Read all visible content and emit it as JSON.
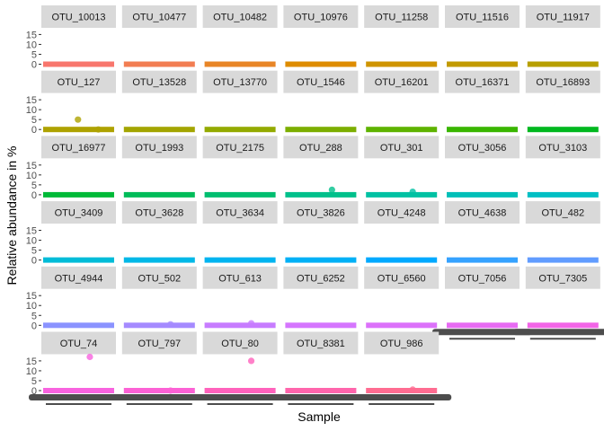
{
  "chart_data": {
    "type": "scatter",
    "xlabel": "Sample",
    "ylabel": "Relative abundance in %",
    "y_ticks": [
      0,
      5,
      10,
      15
    ],
    "ylim": [
      0,
      17
    ],
    "grid": false,
    "facet_layout": {
      "columns": 7
    },
    "facets": [
      {
        "name": "OTU_10013",
        "color": "#F8766D",
        "points": []
      },
      {
        "name": "OTU_10477",
        "color": "#F27D52",
        "points": []
      },
      {
        "name": "OTU_10482",
        "color": "#E88526",
        "points": []
      },
      {
        "name": "OTU_10976",
        "color": "#DE8C00",
        "points": []
      },
      {
        "name": "OTU_11258",
        "color": "#CF9400",
        "points": []
      },
      {
        "name": "OTU_11516",
        "color": "#C29A00",
        "points": []
      },
      {
        "name": "OTU_11917",
        "color": "#B79F00",
        "points": []
      },
      {
        "name": "OTU_127",
        "color": "#AEA200",
        "points": [
          5,
          0
        ]
      },
      {
        "name": "OTU_13528",
        "color": "#A3A500",
        "points": []
      },
      {
        "name": "OTU_13770",
        "color": "#93AA00",
        "points": []
      },
      {
        "name": "OTU_1546",
        "color": "#7CAE00",
        "points": []
      },
      {
        "name": "OTU_16201",
        "color": "#5EB300",
        "points": []
      },
      {
        "name": "OTU_16371",
        "color": "#39B600",
        "points": []
      },
      {
        "name": "OTU_16893",
        "color": "#00B81F",
        "points": []
      },
      {
        "name": "OTU_16977",
        "color": "#00BA38",
        "points": []
      },
      {
        "name": "OTU_1993",
        "color": "#00BC59",
        "points": []
      },
      {
        "name": "OTU_2175",
        "color": "#00BE70",
        "points": []
      },
      {
        "name": "OTU_288",
        "color": "#00C08B",
        "points": [
          2.5
        ]
      },
      {
        "name": "OTU_301",
        "color": "#00C1A3",
        "points": [
          1.5
        ]
      },
      {
        "name": "OTU_3056",
        "color": "#00BFB8",
        "points": []
      },
      {
        "name": "OTU_3103",
        "color": "#00BFC4",
        "points": []
      },
      {
        "name": "OTU_3409",
        "color": "#00BCD8",
        "points": []
      },
      {
        "name": "OTU_3628",
        "color": "#00B8E7",
        "points": []
      },
      {
        "name": "OTU_3634",
        "color": "#00B4F0",
        "points": []
      },
      {
        "name": "OTU_3826",
        "color": "#00B0F6",
        "points": []
      },
      {
        "name": "OTU_4248",
        "color": "#00A9FF",
        "points": []
      },
      {
        "name": "OTU_4638",
        "color": "#35A2FF",
        "points": []
      },
      {
        "name": "OTU_482",
        "color": "#619CFF",
        "points": []
      },
      {
        "name": "OTU_4944",
        "color": "#8B93FF",
        "points": []
      },
      {
        "name": "OTU_502",
        "color": "#A58AFF",
        "points": [
          0.5
        ]
      },
      {
        "name": "OTU_613",
        "color": "#C77CFF",
        "points": [
          1
        ]
      },
      {
        "name": "OTU_6252",
        "color": "#D575FE",
        "points": []
      },
      {
        "name": "OTU_6560",
        "color": "#DC71FA",
        "points": []
      },
      {
        "name": "OTU_7056",
        "color": "#E76BF3",
        "points": []
      },
      {
        "name": "OTU_7305",
        "color": "#F265E7",
        "points": []
      },
      {
        "name": "OTU_74",
        "color": "#F863DF",
        "points": [
          17
        ]
      },
      {
        "name": "OTU_797",
        "color": "#FC61D5",
        "points": [
          0
        ]
      },
      {
        "name": "OTU_80",
        "color": "#FF62BC",
        "points": [
          15
        ]
      },
      {
        "name": "OTU_8381",
        "color": "#FF65AC",
        "points": []
      },
      {
        "name": "OTU_986",
        "color": "#FF6C91",
        "points": [
          0.5
        ]
      }
    ]
  }
}
